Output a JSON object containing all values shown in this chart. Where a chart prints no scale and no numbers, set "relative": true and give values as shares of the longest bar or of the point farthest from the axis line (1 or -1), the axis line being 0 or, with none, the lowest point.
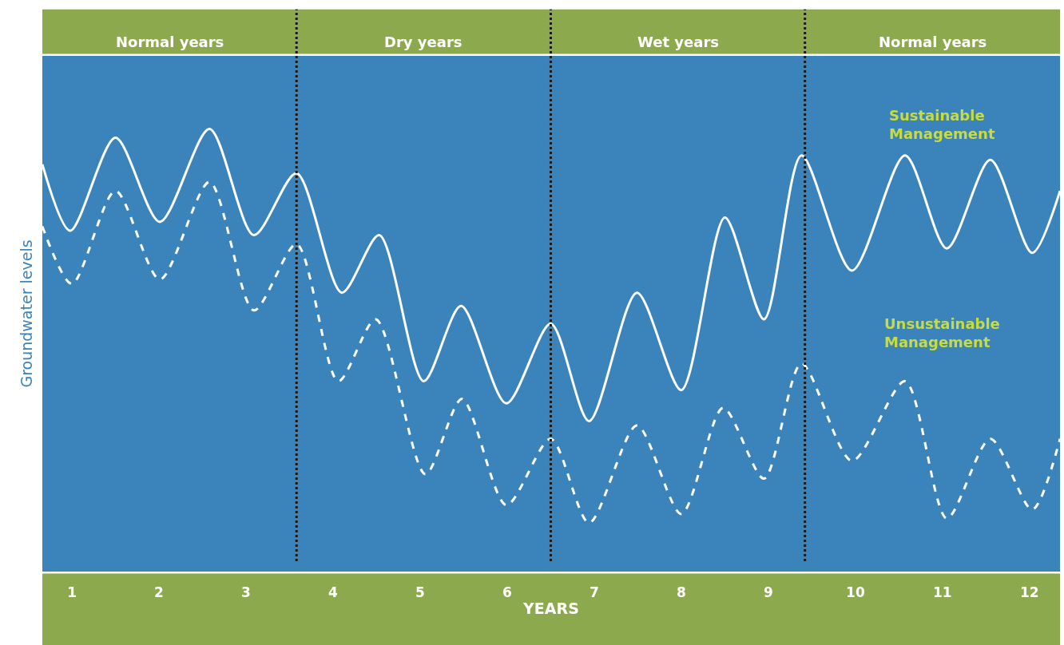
{
  "chart_data": {
    "type": "line",
    "relative": true,
    "xlabel": "YEARS",
    "ylabel": "Groundwater levels",
    "xlim": [
      0.66,
      12.35
    ],
    "xticks": [
      1,
      2,
      3,
      4,
      5,
      6,
      7,
      8,
      9,
      10,
      11,
      12
    ],
    "grid": false,
    "legend": false,
    "marker": "none",
    "series": [
      {
        "name": "Sustainable Management",
        "color": "#ffffff",
        "line_style": "solid",
        "x": [
          0.66,
          0.98,
          1.5,
          2.01,
          2.58,
          3.09,
          3.58,
          4.1,
          4.53,
          5.04,
          5.47,
          5.99,
          6.5,
          6.94,
          7.49,
          8.0,
          8.5,
          8.95,
          9.38,
          9.96,
          10.57,
          11.05,
          11.55,
          12.03,
          12.35
        ],
        "values": [
          0.92,
          0.77,
          0.98,
          0.79,
          1.0,
          0.76,
          0.9,
          0.63,
          0.76,
          0.43,
          0.6,
          0.38,
          0.56,
          0.34,
          0.63,
          0.41,
          0.8,
          0.57,
          0.94,
          0.68,
          0.94,
          0.73,
          0.93,
          0.72,
          0.86
        ]
      },
      {
        "name": "Unsustainable Management",
        "color": "#ffffff",
        "line_style": "dashed",
        "x": [
          0.66,
          1.0,
          1.5,
          2.01,
          2.58,
          3.09,
          3.58,
          4.06,
          4.49,
          5.06,
          5.48,
          5.99,
          6.5,
          6.94,
          7.49,
          8.0,
          8.48,
          8.95,
          9.38,
          9.96,
          10.57,
          11.05,
          11.55,
          12.03,
          12.35
        ],
        "values": [
          0.78,
          0.65,
          0.86,
          0.66,
          0.88,
          0.59,
          0.74,
          0.43,
          0.57,
          0.22,
          0.39,
          0.15,
          0.3,
          0.11,
          0.33,
          0.13,
          0.37,
          0.21,
          0.47,
          0.25,
          0.43,
          0.12,
          0.3,
          0.14,
          0.3
        ]
      }
    ],
    "annotations": [
      "Normal years",
      "Dry years",
      "Wet years",
      "Normal years"
    ],
    "ref_lines": [
      {
        "axis": "x",
        "value": 3.58,
        "color": "#1a1a1a",
        "line_style": "dotted"
      },
      {
        "axis": "x",
        "value": 6.5,
        "color": "#1a1a1a",
        "line_style": "dotted"
      },
      {
        "axis": "x",
        "value": 9.42,
        "color": "#1a1a1a",
        "line_style": "dotted"
      }
    ]
  }
}
